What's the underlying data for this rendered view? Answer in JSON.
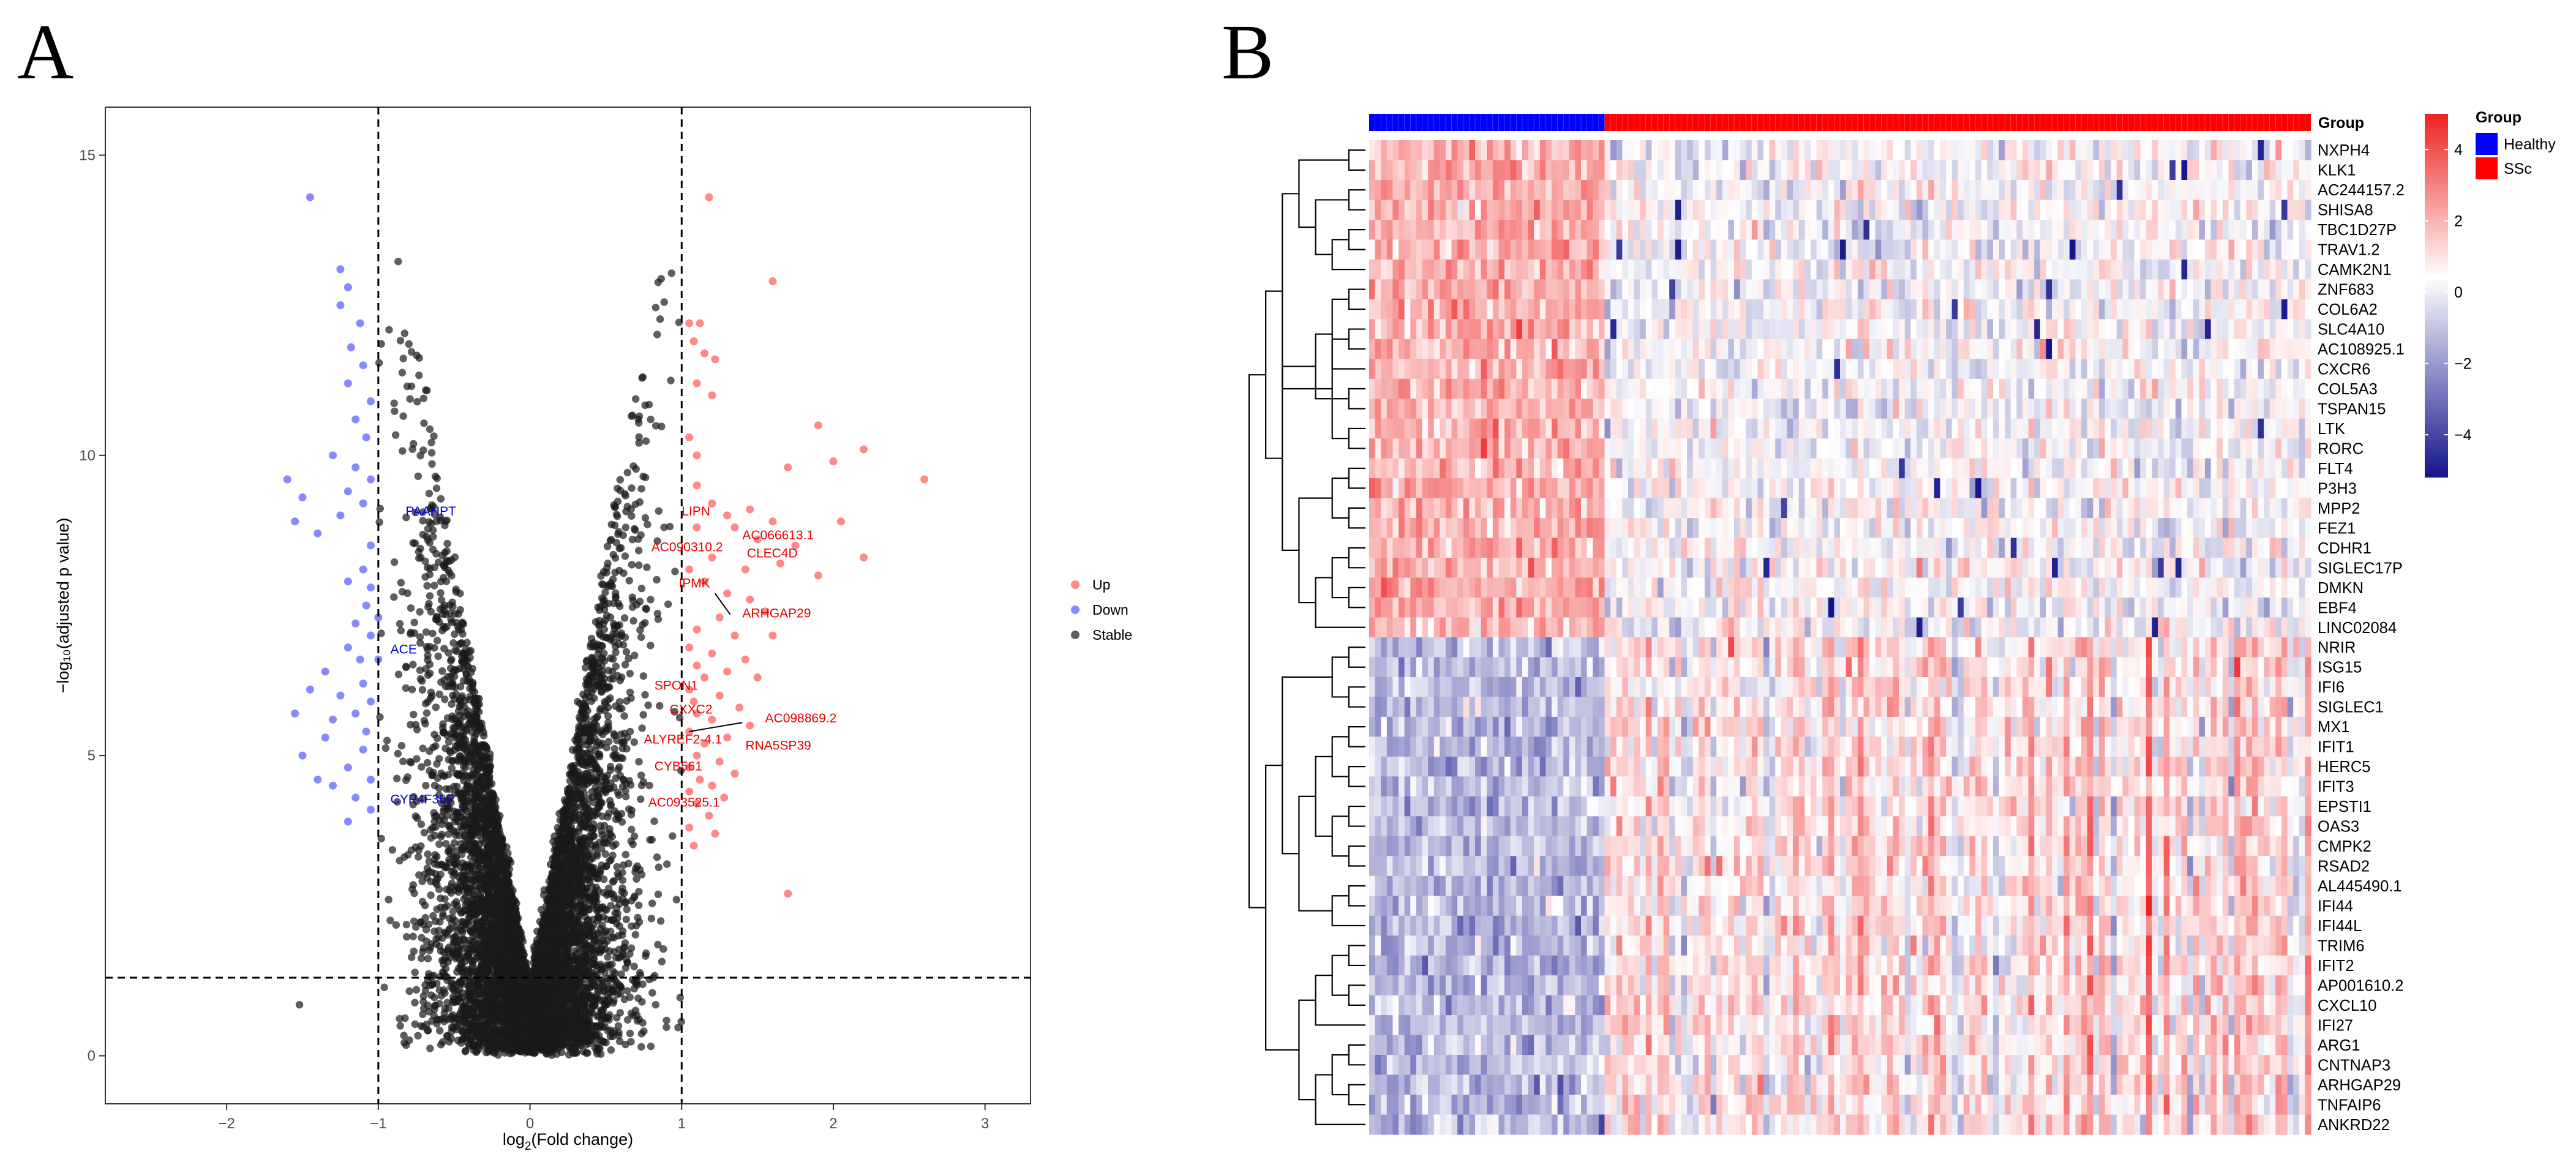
{
  "panels": {
    "a_letter": "A",
    "b_letter": "B"
  },
  "colors": {
    "up": "#ff3b3b",
    "down": "#3b3bff",
    "stable": "#1a1a1a",
    "heat_high": "#ee2222",
    "heat_mid": "#ffffff",
    "heat_low": "#14148c",
    "healthy": "#0000ff",
    "ssc": "#ff0000"
  },
  "chart_data": [
    {
      "type": "scatter",
      "name": "volcano",
      "xlabel_main": "log",
      "xlabel_sub": "2",
      "xlabel_rest": "(Fold change)",
      "ylabel": "−log₁₀(adjusted p value)",
      "xlim": [
        -2.8,
        3.3
      ],
      "ylim": [
        -0.8,
        15.8
      ],
      "xticks": [
        -2,
        -1,
        0,
        1,
        2,
        3
      ],
      "xtick_labels": [
        "−2",
        "−1",
        "0",
        "1",
        "2",
        "3"
      ],
      "yticks": [
        0,
        5,
        10,
        15
      ],
      "ytick_labels": [
        "0",
        "5",
        "10",
        "15"
      ],
      "thresholds": {
        "fc": [
          -1,
          1
        ],
        "p": 1.3
      },
      "legend": [
        {
          "label": "Up",
          "key": "up"
        },
        {
          "label": "Down",
          "key": "down"
        },
        {
          "label": "Stable",
          "key": "stable"
        }
      ],
      "up_points": [
        [
          1.18,
          14.3
        ],
        [
          1.6,
          12.9
        ],
        [
          1.05,
          12.2
        ],
        [
          1.12,
          12.2
        ],
        [
          1.08,
          11.9
        ],
        [
          1.15,
          11.7
        ],
        [
          1.22,
          11.6
        ],
        [
          1.1,
          11.2
        ],
        [
          1.2,
          11.0
        ],
        [
          1.9,
          10.5
        ],
        [
          1.05,
          10.3
        ],
        [
          1.1,
          10.0
        ],
        [
          2.2,
          10.1
        ],
        [
          2.0,
          9.9
        ],
        [
          1.7,
          9.8
        ],
        [
          2.6,
          9.6
        ],
        [
          1.1,
          9.5
        ],
        [
          1.2,
          9.2
        ],
        [
          1.3,
          9.0
        ],
        [
          1.45,
          9.1
        ],
        [
          1.6,
          8.9
        ],
        [
          2.05,
          8.9
        ],
        [
          1.35,
          8.8
        ],
        [
          1.1,
          8.8
        ],
        [
          1.5,
          8.6
        ],
        [
          1.75,
          8.5
        ],
        [
          2.2,
          8.3
        ],
        [
          1.2,
          8.3
        ],
        [
          1.42,
          8.1
        ],
        [
          1.9,
          8.0
        ],
        [
          1.65,
          8.2
        ],
        [
          1.05,
          8.1
        ],
        [
          1.15,
          7.9
        ],
        [
          1.3,
          7.7
        ],
        [
          1.45,
          7.6
        ],
        [
          1.55,
          7.4
        ],
        [
          1.25,
          7.3
        ],
        [
          1.1,
          7.1
        ],
        [
          1.35,
          7.0
        ],
        [
          1.6,
          7.0
        ],
        [
          1.05,
          6.8
        ],
        [
          1.2,
          6.7
        ],
        [
          1.42,
          6.6
        ],
        [
          1.1,
          6.5
        ],
        [
          1.3,
          6.4
        ],
        [
          1.5,
          6.3
        ],
        [
          1.15,
          6.3
        ],
        [
          1.05,
          6.1
        ],
        [
          1.25,
          6.0
        ],
        [
          1.08,
          5.9
        ],
        [
          1.38,
          5.8
        ],
        [
          1.1,
          5.7
        ],
        [
          1.2,
          5.6
        ],
        [
          1.45,
          5.5
        ],
        [
          1.05,
          5.4
        ],
        [
          1.3,
          5.3
        ],
        [
          1.15,
          5.2
        ],
        [
          1.1,
          5.0
        ],
        [
          1.25,
          4.9
        ],
        [
          1.05,
          4.8
        ],
        [
          1.35,
          4.7
        ],
        [
          1.12,
          4.6
        ],
        [
          1.2,
          4.5
        ],
        [
          1.05,
          4.4
        ],
        [
          1.28,
          4.3
        ],
        [
          1.1,
          4.2
        ],
        [
          1.18,
          4.0
        ],
        [
          1.05,
          3.8
        ],
        [
          1.22,
          3.7
        ],
        [
          1.08,
          3.5
        ],
        [
          1.7,
          2.7
        ]
      ],
      "down_points": [
        [
          -1.45,
          14.3
        ],
        [
          -1.25,
          13.1
        ],
        [
          -1.2,
          12.8
        ],
        [
          -1.25,
          12.5
        ],
        [
          -1.12,
          12.2
        ],
        [
          -1.18,
          11.8
        ],
        [
          -1.1,
          11.5
        ],
        [
          -1.2,
          11.2
        ],
        [
          -1.05,
          10.9
        ],
        [
          -1.15,
          10.6
        ],
        [
          -1.08,
          10.3
        ],
        [
          -1.3,
          10.0
        ],
        [
          -1.15,
          9.8
        ],
        [
          -1.05,
          9.6
        ],
        [
          -1.6,
          9.6
        ],
        [
          -1.2,
          9.4
        ],
        [
          -1.5,
          9.3
        ],
        [
          -1.1,
          9.2
        ],
        [
          -1.25,
          9.0
        ],
        [
          -1.4,
          8.7
        ],
        [
          -1.55,
          8.9
        ],
        [
          -1.05,
          8.5
        ],
        [
          -1.1,
          8.1
        ],
        [
          -1.2,
          7.9
        ],
        [
          -1.05,
          7.8
        ],
        [
          -1.08,
          7.5
        ],
        [
          -1.0,
          7.3
        ],
        [
          -1.15,
          7.2
        ],
        [
          -1.05,
          7.0
        ],
        [
          -1.2,
          6.8
        ],
        [
          -1.12,
          6.6
        ],
        [
          -1.0,
          6.6
        ],
        [
          -1.35,
          6.4
        ],
        [
          -1.1,
          6.2
        ],
        [
          -1.25,
          6.0
        ],
        [
          -1.45,
          6.1
        ],
        [
          -1.05,
          5.9
        ],
        [
          -1.15,
          5.7
        ],
        [
          -1.3,
          5.6
        ],
        [
          -1.08,
          5.4
        ],
        [
          -1.55,
          5.7
        ],
        [
          -1.35,
          5.3
        ],
        [
          -1.1,
          5.1
        ],
        [
          -1.5,
          5.0
        ],
        [
          -1.2,
          4.8
        ],
        [
          -1.05,
          4.6
        ],
        [
          -1.3,
          4.5
        ],
        [
          -1.4,
          4.6
        ],
        [
          -1.15,
          4.3
        ],
        [
          -1.05,
          4.1
        ],
        [
          -1.2,
          3.9
        ]
      ],
      "stable_extra": [
        [
          -1.52,
          0.85
        ]
      ],
      "gene_labels": [
        {
          "text": "LIPN",
          "x": 1.0,
          "y": 9.0,
          "group": "up"
        },
        {
          "text": "AC066613.1",
          "x": 1.4,
          "y": 8.6,
          "group": "up"
        },
        {
          "text": "AC090310.2",
          "x": 0.8,
          "y": 8.4,
          "group": "up"
        },
        {
          "text": "CLEC4D",
          "x": 1.43,
          "y": 8.3,
          "group": "up"
        },
        {
          "text": "IPMK",
          "x": 0.98,
          "y": 7.8,
          "group": "up"
        },
        {
          "text": "ARHGAP29",
          "x": 1.4,
          "y": 7.3,
          "group": "up"
        },
        {
          "text": "SPON1",
          "x": 0.82,
          "y": 6.1,
          "group": "up"
        },
        {
          "text": "CXXC2",
          "x": 0.92,
          "y": 5.7,
          "group": "up"
        },
        {
          "text": "AC098869.2",
          "x": 1.55,
          "y": 5.55,
          "group": "up"
        },
        {
          "text": "ALYREF2-4.1",
          "x": 0.75,
          "y": 5.2,
          "group": "up"
        },
        {
          "text": "RNA5SP39",
          "x": 1.42,
          "y": 5.1,
          "group": "up"
        },
        {
          "text": "CYB561",
          "x": 0.82,
          "y": 4.75,
          "group": "up"
        },
        {
          "text": "AC093525.1",
          "x": 0.78,
          "y": 4.15,
          "group": "up"
        },
        {
          "text": "PAAHPT",
          "x": -0.82,
          "y": 9.0,
          "group": "down"
        },
        {
          "text": "ACE",
          "x": -0.92,
          "y": 6.7,
          "group": "down"
        },
        {
          "text": "CYP4F35P",
          "x": -0.92,
          "y": 4.2,
          "group": "down"
        }
      ]
    },
    {
      "type": "heatmap",
      "name": "expression-heatmap",
      "groups_label": "Group",
      "legend_title": "Group",
      "group_legend": [
        {
          "label": "Healthy",
          "key": "healthy"
        },
        {
          "label": "SSc",
          "key": "ssc"
        }
      ],
      "n_healthy": 40,
      "n_ssc": 120,
      "colorbar_ticks": [
        4,
        2,
        0,
        -2,
        -4
      ],
      "colorbar_labels": [
        "4",
        "2",
        "0",
        "−2",
        "−4"
      ],
      "colorbar_range": [
        -5.2,
        5.0
      ],
      "genes": [
        "NXPH4",
        "KLK1",
        "AC244157.2",
        "SHISA8",
        "TBC1D27P",
        "TRAV1.2",
        "CAMK2N1",
        "ZNF683",
        "COL6A2",
        "SLC4A10",
        "AC108925.1",
        "CXCR6",
        "COL5A3",
        "TSPAN15",
        "LTK",
        "RORC",
        "FLT4",
        "P3H3",
        "MPP2",
        "FEZ1",
        "CDHR1",
        "SIGLEC17P",
        "DMKN",
        "EBF4",
        "LINC02084",
        "NRIR",
        "ISG15",
        "IFI6",
        "SIGLEC1",
        "MX1",
        "IFIT1",
        "HERC5",
        "IFIT3",
        "EPSTI1",
        "OAS3",
        "CMPK2",
        "RSAD2",
        "AL445490.1",
        "IFI44",
        "IFI44L",
        "TRIM6",
        "IFIT2",
        "AP001610.2",
        "CXCL10",
        "IFI27",
        "ARG1",
        "CNTNAP3",
        "ARHGAP29",
        "TNFAIP6",
        "ANKRD22"
      ],
      "cluster_split_after_row": 25,
      "dendrogram_merges": [
        [
          0,
          1
        ],
        [
          2,
          3
        ],
        [
          4,
          5
        ],
        [
          -3,
          6
        ],
        [
          -2,
          -4
        ],
        [
          -1,
          -5
        ],
        [
          7,
          8
        ],
        [
          9,
          10
        ],
        [
          -7,
          11
        ],
        [
          12,
          13
        ],
        [
          14,
          15
        ],
        [
          -9,
          -10
        ],
        [
          -8,
          -11
        ],
        [
          16,
          17
        ],
        [
          18,
          19
        ],
        [
          -14,
          -15
        ],
        [
          20,
          21
        ],
        [
          22,
          23
        ],
        [
          -17,
          -18
        ],
        [
          -19,
          24
        ],
        [
          -16,
          -20
        ],
        [
          -12,
          -21
        ],
        [
          -6,
          -13
        ],
        [
          -22,
          -23
        ],
        [
          25,
          26
        ],
        [
          27,
          28
        ],
        [
          -25,
          -26
        ],
        [
          29,
          30
        ],
        [
          31,
          32
        ],
        [
          -28,
          -29
        ],
        [
          33,
          34
        ],
        [
          35,
          36
        ],
        [
          -31,
          -32
        ],
        [
          -30,
          -33
        ],
        [
          37,
          38
        ],
        [
          39,
          -35
        ],
        [
          -34,
          -36
        ],
        [
          -27,
          -37
        ],
        [
          40,
          41
        ],
        [
          42,
          43
        ],
        [
          -39,
          -40
        ],
        [
          -41,
          44
        ],
        [
          45,
          46
        ],
        [
          47,
          48
        ],
        [
          -43,
          -44
        ],
        [
          -45,
          49
        ],
        [
          -42,
          -46
        ],
        [
          -38,
          -47
        ],
        [
          -24,
          -48
        ]
      ]
    }
  ]
}
